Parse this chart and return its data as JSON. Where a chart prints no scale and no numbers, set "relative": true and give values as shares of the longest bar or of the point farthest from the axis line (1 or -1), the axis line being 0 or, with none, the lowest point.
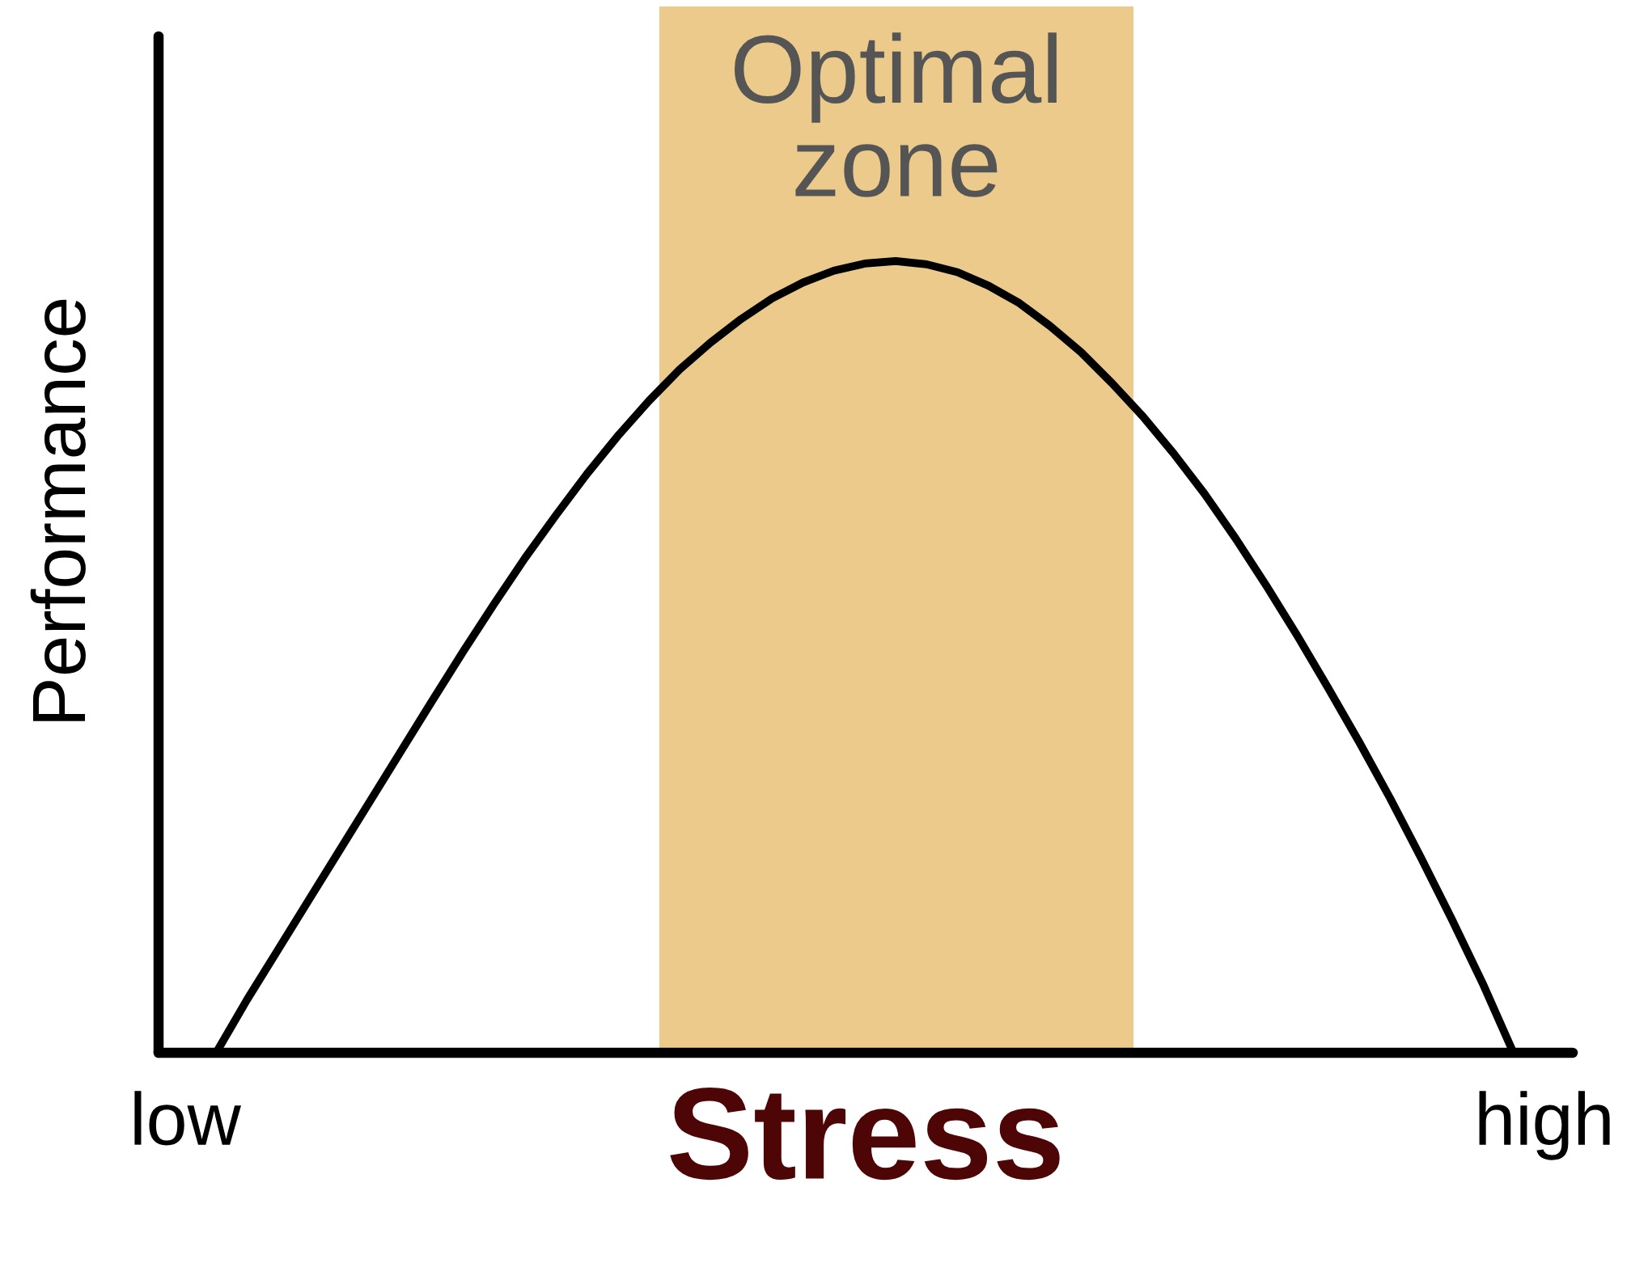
{
  "chart_data": {
    "type": "line",
    "relative": true,
    "xlabel": "Stress",
    "ylabel": "Performance",
    "categories": [
      "low",
      null,
      null,
      null,
      null,
      null,
      null,
      null,
      null,
      null,
      null,
      null,
      null,
      null,
      null,
      null,
      null,
      null,
      null,
      null,
      null,
      null,
      null,
      null,
      null,
      null,
      null,
      null,
      null,
      null,
      null,
      null,
      null,
      null,
      null,
      null,
      null,
      null,
      null,
      null,
      null,
      null,
      null,
      null,
      "high"
    ],
    "series": [
      {
        "color": "#000000",
        "values": [
          null,
          0,
          0.067,
          0.13,
          0.193,
          0.256,
          0.319,
          0.382,
          0.445,
          0.507,
          0.567,
          0.625,
          0.679,
          0.731,
          0.779,
          0.823,
          0.863,
          0.897,
          0.927,
          0.953,
          0.973,
          0.988,
          0.997,
          1.0,
          0.996,
          0.986,
          0.969,
          0.947,
          0.918,
          0.885,
          0.846,
          0.804,
          0.757,
          0.706,
          0.65,
          0.59,
          0.527,
          0.461,
          0.393,
          0.322,
          0.247,
          0.169,
          0.088,
          0,
          null
        ]
      }
    ],
    "tick_labels": "x",
    "annotations": [
      "Optimal zone"
    ]
  }
}
